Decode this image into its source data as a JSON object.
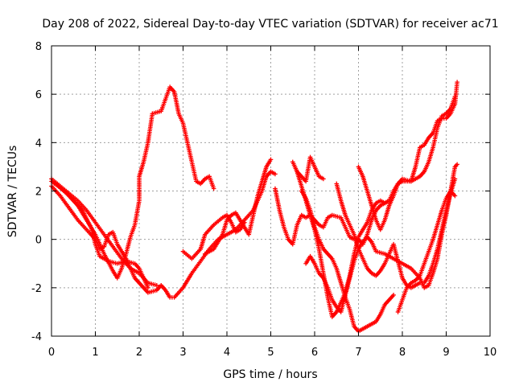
{
  "chart_data": {
    "type": "scatter",
    "title": "Day 208 of 2022, Sidereal Day-to-day VTEC variation (SDTVAR) for receiver ac71",
    "xlabel": "GPS time / hours",
    "ylabel": "SDTVAR / TECUs",
    "xlim": [
      0,
      10
    ],
    "ylim": [
      -4,
      8
    ],
    "xticks": [
      "0",
      "1",
      "2",
      "3",
      "4",
      "5",
      "6",
      "7",
      "8",
      "9",
      "10"
    ],
    "yticks": [
      "-4",
      "-2",
      "0",
      "2",
      "4",
      "6",
      "8"
    ],
    "grid": true,
    "marker": "plus",
    "color": "#ff0000",
    "series": [
      {
        "points": [
          [
            0.0,
            2.5
          ],
          [
            0.2,
            2.2
          ],
          [
            0.4,
            1.9
          ],
          [
            0.6,
            1.6
          ],
          [
            0.8,
            1.2
          ],
          [
            1.0,
            0.7
          ],
          [
            1.2,
            0.2
          ],
          [
            1.4,
            -0.3
          ],
          [
            1.6,
            -0.8
          ],
          [
            1.8,
            -1.2
          ],
          [
            1.9,
            -1.6
          ],
          [
            2.0,
            -1.8
          ],
          [
            2.1,
            -2.0
          ],
          [
            2.2,
            -2.2
          ],
          [
            2.4,
            -2.1
          ],
          [
            2.5,
            -1.9
          ],
          [
            2.6,
            -2.1
          ],
          [
            2.7,
            -2.4
          ],
          [
            2.8,
            -2.4
          ],
          [
            3.0,
            -2.0
          ],
          [
            3.2,
            -1.4
          ],
          [
            3.4,
            -0.9
          ],
          [
            3.6,
            -0.4
          ],
          [
            3.8,
            0.0
          ],
          [
            4.0,
            0.2
          ],
          [
            4.2,
            0.4
          ],
          [
            4.4,
            0.8
          ],
          [
            4.6,
            1.2
          ],
          [
            4.8,
            2.0
          ],
          [
            4.9,
            2.6
          ],
          [
            5.0,
            2.8
          ],
          [
            5.1,
            2.7
          ]
        ]
      },
      {
        "points": [
          [
            0.0,
            2.2
          ],
          [
            0.2,
            1.8
          ],
          [
            0.4,
            1.3
          ],
          [
            0.6,
            0.8
          ],
          [
            0.8,
            0.4
          ],
          [
            1.0,
            0.0
          ],
          [
            1.1,
            -0.4
          ],
          [
            1.2,
            -0.3
          ],
          [
            1.3,
            0.2
          ],
          [
            1.4,
            0.3
          ],
          [
            1.5,
            -0.2
          ],
          [
            1.7,
            -0.8
          ],
          [
            1.8,
            -1.2
          ],
          [
            2.0,
            -1.4
          ],
          [
            2.2,
            -1.8
          ],
          [
            2.4,
            -1.9
          ]
        ]
      },
      {
        "points": [
          [
            0.0,
            2.4
          ],
          [
            0.3,
            2.0
          ],
          [
            0.6,
            1.4
          ],
          [
            0.8,
            0.8
          ],
          [
            1.0,
            0.2
          ],
          [
            1.2,
            -0.6
          ],
          [
            1.4,
            -1.3
          ],
          [
            1.5,
            -1.6
          ],
          [
            1.6,
            -1.2
          ],
          [
            1.7,
            -0.6
          ],
          [
            1.8,
            0.1
          ],
          [
            1.9,
            0.6
          ],
          [
            2.0,
            1.6
          ],
          [
            2.0,
            2.6
          ],
          [
            2.1,
            3.2
          ],
          [
            2.2,
            4.0
          ],
          [
            2.3,
            5.2
          ],
          [
            2.5,
            5.3
          ],
          [
            2.6,
            5.8
          ],
          [
            2.7,
            6.3
          ],
          [
            2.8,
            6.1
          ],
          [
            2.9,
            5.2
          ],
          [
            3.0,
            4.8
          ],
          [
            3.1,
            4.0
          ],
          [
            3.2,
            3.2
          ],
          [
            3.3,
            2.4
          ],
          [
            3.4,
            2.3
          ],
          [
            3.5,
            2.5
          ],
          [
            3.6,
            2.6
          ],
          [
            3.7,
            2.1
          ]
        ]
      },
      {
        "points": [
          [
            0.1,
            2.3
          ],
          [
            0.4,
            1.8
          ],
          [
            0.7,
            1.2
          ],
          [
            0.9,
            0.5
          ],
          [
            1.0,
            -0.2
          ],
          [
            1.1,
            -0.7
          ],
          [
            1.3,
            -0.9
          ],
          [
            1.5,
            -1.0
          ],
          [
            1.7,
            -0.9
          ],
          [
            1.9,
            -1.0
          ],
          [
            2.0,
            -1.2
          ],
          [
            2.1,
            -1.6
          ],
          [
            2.2,
            -2.0
          ]
        ]
      },
      {
        "points": [
          [
            3.0,
            -0.5
          ],
          [
            3.2,
            -0.8
          ],
          [
            3.4,
            -0.4
          ],
          [
            3.5,
            0.2
          ],
          [
            3.7,
            0.6
          ],
          [
            3.9,
            0.9
          ],
          [
            4.0,
            1.0
          ],
          [
            4.1,
            0.7
          ],
          [
            4.2,
            0.3
          ],
          [
            4.3,
            0.4
          ],
          [
            4.4,
            0.7
          ]
        ]
      },
      {
        "points": [
          [
            3.5,
            -0.6
          ],
          [
            3.7,
            -0.4
          ],
          [
            3.9,
            0.2
          ],
          [
            4.0,
            0.8
          ],
          [
            4.1,
            1.0
          ],
          [
            4.2,
            1.1
          ],
          [
            4.3,
            0.8
          ],
          [
            4.4,
            0.5
          ],
          [
            4.5,
            0.2
          ],
          [
            4.6,
            1.0
          ],
          [
            4.7,
            1.8
          ],
          [
            4.8,
            2.4
          ],
          [
            4.9,
            3.0
          ],
          [
            5.0,
            3.3
          ]
        ]
      },
      {
        "points": [
          [
            5.1,
            2.1
          ],
          [
            5.2,
            1.2
          ],
          [
            5.3,
            0.5
          ],
          [
            5.4,
            0.0
          ],
          [
            5.5,
            -0.2
          ],
          [
            5.6,
            0.6
          ],
          [
            5.7,
            1.0
          ],
          [
            5.8,
            0.9
          ],
          [
            5.9,
            1.0
          ],
          [
            6.0,
            0.8
          ],
          [
            6.1,
            0.6
          ],
          [
            6.2,
            0.5
          ],
          [
            6.3,
            0.9
          ],
          [
            6.4,
            1.0
          ],
          [
            6.6,
            0.9
          ],
          [
            6.7,
            0.5
          ],
          [
            6.8,
            0.1
          ],
          [
            6.9,
            0.0
          ],
          [
            7.0,
            0.0
          ],
          [
            7.1,
            -0.2
          ],
          [
            7.2,
            0.2
          ],
          [
            7.3,
            0.8
          ],
          [
            7.4,
            1.2
          ],
          [
            7.5,
            1.4
          ],
          [
            7.6,
            1.5
          ],
          [
            7.7,
            1.6
          ],
          [
            7.8,
            2.0
          ],
          [
            7.9,
            2.3
          ],
          [
            8.0,
            2.4
          ],
          [
            8.2,
            2.4
          ],
          [
            8.3,
            3.0
          ],
          [
            8.4,
            3.8
          ],
          [
            8.5,
            3.9
          ],
          [
            8.6,
            4.2
          ],
          [
            8.7,
            4.4
          ],
          [
            8.8,
            4.9
          ],
          [
            8.9,
            5.0
          ],
          [
            9.0,
            5.0
          ],
          [
            9.1,
            5.2
          ],
          [
            9.2,
            5.6
          ],
          [
            9.25,
            6.5
          ]
        ]
      },
      {
        "points": [
          [
            5.5,
            3.2
          ],
          [
            5.6,
            2.8
          ],
          [
            5.7,
            2.6
          ],
          [
            5.8,
            2.4
          ],
          [
            5.9,
            3.4
          ],
          [
            6.0,
            3.0
          ],
          [
            6.1,
            2.6
          ],
          [
            6.2,
            2.5
          ]
        ]
      },
      {
        "points": [
          [
            5.6,
            2.8
          ],
          [
            5.7,
            2.2
          ],
          [
            5.8,
            1.6
          ],
          [
            5.9,
            1.0
          ],
          [
            6.0,
            0.4
          ],
          [
            6.1,
            -0.4
          ],
          [
            6.2,
            -1.4
          ],
          [
            6.3,
            -2.4
          ],
          [
            6.4,
            -3.2
          ],
          [
            6.5,
            -3.0
          ],
          [
            6.6,
            -2.6
          ],
          [
            6.7,
            -2.2
          ],
          [
            6.8,
            -1.5
          ],
          [
            6.9,
            -0.6
          ],
          [
            7.0,
            0.1
          ],
          [
            7.1,
            0.4
          ],
          [
            7.2,
            0.7
          ],
          [
            7.3,
            1.2
          ],
          [
            7.4,
            1.5
          ],
          [
            7.5,
            1.6
          ],
          [
            7.6,
            1.5
          ],
          [
            7.7,
            1.6
          ]
        ]
      },
      {
        "points": [
          [
            5.7,
            2.0
          ],
          [
            5.8,
            1.7
          ],
          [
            5.9,
            1.2
          ],
          [
            6.0,
            0.5
          ],
          [
            6.1,
            0.0
          ],
          [
            6.2,
            -0.4
          ],
          [
            6.3,
            -0.6
          ],
          [
            6.4,
            -0.8
          ],
          [
            6.5,
            -1.2
          ],
          [
            6.6,
            -1.8
          ],
          [
            6.7,
            -2.4
          ],
          [
            6.8,
            -2.9
          ],
          [
            6.9,
            -3.6
          ],
          [
            7.0,
            -3.8
          ],
          [
            7.1,
            -3.7
          ],
          [
            7.2,
            -3.6
          ],
          [
            7.4,
            -3.4
          ],
          [
            7.5,
            -3.1
          ],
          [
            7.6,
            -2.7
          ],
          [
            7.7,
            -2.5
          ],
          [
            7.8,
            -2.3
          ]
        ]
      },
      {
        "points": [
          [
            5.8,
            -1.0
          ],
          [
            5.9,
            -0.7
          ],
          [
            6.0,
            -1.0
          ],
          [
            6.1,
            -1.4
          ],
          [
            6.2,
            -1.6
          ],
          [
            6.3,
            -2.0
          ],
          [
            6.4,
            -2.5
          ],
          [
            6.5,
            -2.8
          ],
          [
            6.6,
            -3.0
          ],
          [
            6.7,
            -2.3
          ],
          [
            6.8,
            -1.6
          ],
          [
            6.9,
            -0.9
          ],
          [
            7.0,
            -0.4
          ],
          [
            7.1,
            -0.1
          ],
          [
            7.2,
            0.1
          ],
          [
            7.3,
            -0.1
          ],
          [
            7.4,
            -0.5
          ],
          [
            7.6,
            -0.6
          ],
          [
            7.8,
            -0.8
          ],
          [
            8.0,
            -1.0
          ],
          [
            8.2,
            -1.2
          ],
          [
            8.4,
            -1.6
          ],
          [
            8.5,
            -2.0
          ],
          [
            8.6,
            -1.9
          ],
          [
            8.7,
            -1.4
          ],
          [
            8.8,
            -0.8
          ],
          [
            8.9,
            0.2
          ],
          [
            9.0,
            1.0
          ],
          [
            9.1,
            2.0
          ],
          [
            9.2,
            3.0
          ],
          [
            9.25,
            3.1
          ]
        ]
      },
      {
        "points": [
          [
            6.5,
            2.3
          ],
          [
            6.6,
            1.6
          ],
          [
            6.7,
            1.0
          ],
          [
            6.8,
            0.6
          ],
          [
            6.9,
            0.2
          ],
          [
            7.0,
            -0.4
          ],
          [
            7.1,
            -0.8
          ],
          [
            7.2,
            -1.2
          ],
          [
            7.3,
            -1.4
          ],
          [
            7.4,
            -1.5
          ],
          [
            7.5,
            -1.3
          ],
          [
            7.6,
            -1.0
          ],
          [
            7.7,
            -0.6
          ],
          [
            7.8,
            -0.2
          ],
          [
            7.9,
            -0.9
          ],
          [
            8.0,
            -1.6
          ],
          [
            8.1,
            -1.9
          ],
          [
            8.2,
            -2.0
          ],
          [
            8.3,
            -1.9
          ],
          [
            8.4,
            -1.8
          ],
          [
            8.5,
            -1.8
          ],
          [
            8.6,
            -1.5
          ],
          [
            8.7,
            -1.0
          ],
          [
            8.8,
            -0.4
          ],
          [
            8.9,
            0.4
          ],
          [
            9.0,
            1.2
          ],
          [
            9.1,
            1.9
          ],
          [
            9.2,
            2.5
          ]
        ]
      },
      {
        "points": [
          [
            7.0,
            3.0
          ],
          [
            7.1,
            2.6
          ],
          [
            7.2,
            2.0
          ],
          [
            7.3,
            1.4
          ],
          [
            7.4,
            0.8
          ],
          [
            7.5,
            0.4
          ],
          [
            7.6,
            0.8
          ],
          [
            7.7,
            1.4
          ],
          [
            7.8,
            1.8
          ],
          [
            7.9,
            2.3
          ],
          [
            8.0,
            2.5
          ],
          [
            8.2,
            2.4
          ],
          [
            8.3,
            2.5
          ],
          [
            8.4,
            2.6
          ],
          [
            8.5,
            2.8
          ],
          [
            8.6,
            3.2
          ],
          [
            8.7,
            3.8
          ],
          [
            8.8,
            4.6
          ],
          [
            8.9,
            5.1
          ],
          [
            9.0,
            5.2
          ],
          [
            9.1,
            5.4
          ],
          [
            9.2,
            5.9
          ]
        ]
      },
      {
        "points": [
          [
            7.9,
            -3.0
          ],
          [
            8.0,
            -2.5
          ],
          [
            8.1,
            -2.0
          ],
          [
            8.2,
            -1.8
          ],
          [
            8.3,
            -1.7
          ],
          [
            8.4,
            -1.5
          ],
          [
            8.5,
            -1.0
          ],
          [
            8.6,
            -0.5
          ],
          [
            8.7,
            0.0
          ],
          [
            8.8,
            0.6
          ],
          [
            8.9,
            1.2
          ],
          [
            9.0,
            1.7
          ],
          [
            9.1,
            2.0
          ],
          [
            9.2,
            1.8
          ]
        ]
      }
    ]
  }
}
